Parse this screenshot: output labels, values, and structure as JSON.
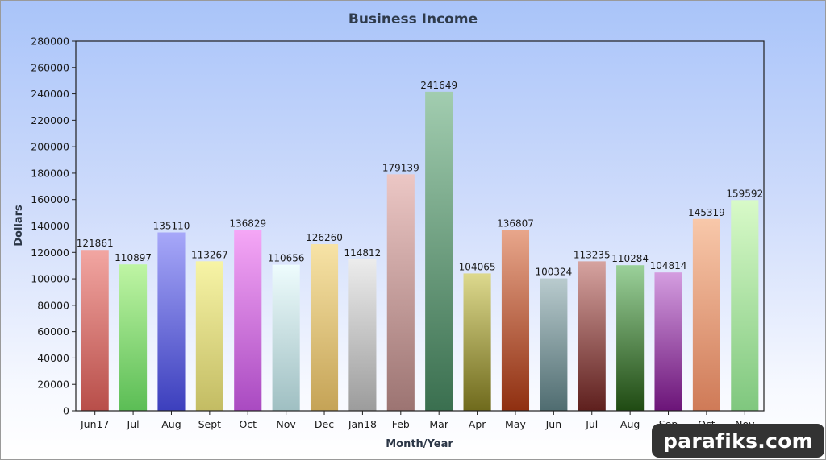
{
  "chart_data": {
    "type": "bar",
    "title": "Business Income",
    "xlabel": "Month/Year",
    "ylabel": "Dollars",
    "ylim": [
      0,
      280000
    ],
    "yticks": [
      0,
      20000,
      40000,
      60000,
      80000,
      100000,
      120000,
      140000,
      160000,
      180000,
      200000,
      220000,
      240000,
      260000,
      280000
    ],
    "grid": false,
    "legend": "none",
    "categories": [
      "Jun17",
      "Jul",
      "Aug",
      "Sept",
      "Oct",
      "Nov",
      "Dec",
      "Jan18",
      "Feb",
      "Mar",
      "Apr",
      "May",
      "Jun",
      "Jul",
      "Aug",
      "Sep",
      "Oct",
      "Nov"
    ],
    "values": [
      121861,
      110897,
      135110,
      113267,
      136829,
      110656,
      126260,
      114812,
      179139,
      241649,
      104065,
      136807,
      100324,
      113235,
      110284,
      104814,
      145319,
      159592
    ],
    "bar_colors": [
      [
        "#f2a6a2",
        "#b84e49"
      ],
      [
        "#bff5a4",
        "#5bbd55"
      ],
      [
        "#a7a8f9",
        "#3c3fbd"
      ],
      [
        "#f7f4a6",
        "#c3bc63"
      ],
      [
        "#f5a7f6",
        "#a94ac1"
      ],
      [
        "#eefcfd",
        "#9fbfc2"
      ],
      [
        "#f7e3a6",
        "#c5a356"
      ],
      [
        "#ececec",
        "#9c9c9c"
      ],
      [
        "#ecc7c5",
        "#9c7472"
      ],
      [
        "#a2cdb0",
        "#3a6f4f"
      ],
      [
        "#ddd98e",
        "#6f6a1c"
      ],
      [
        "#e8a68b",
        "#8f2f10"
      ],
      [
        "#b9cbce",
        "#4f6c70"
      ],
      [
        "#d6a3a0",
        "#5e1f1d"
      ],
      [
        "#9bd19a",
        "#1f4a12"
      ],
      [
        "#d49de0",
        "#6b1478"
      ],
      [
        "#f8c8aa",
        "#cf7a57"
      ],
      [
        "#d8fac8",
        "#7fc77e"
      ]
    ]
  },
  "watermark": "parafiks.com"
}
